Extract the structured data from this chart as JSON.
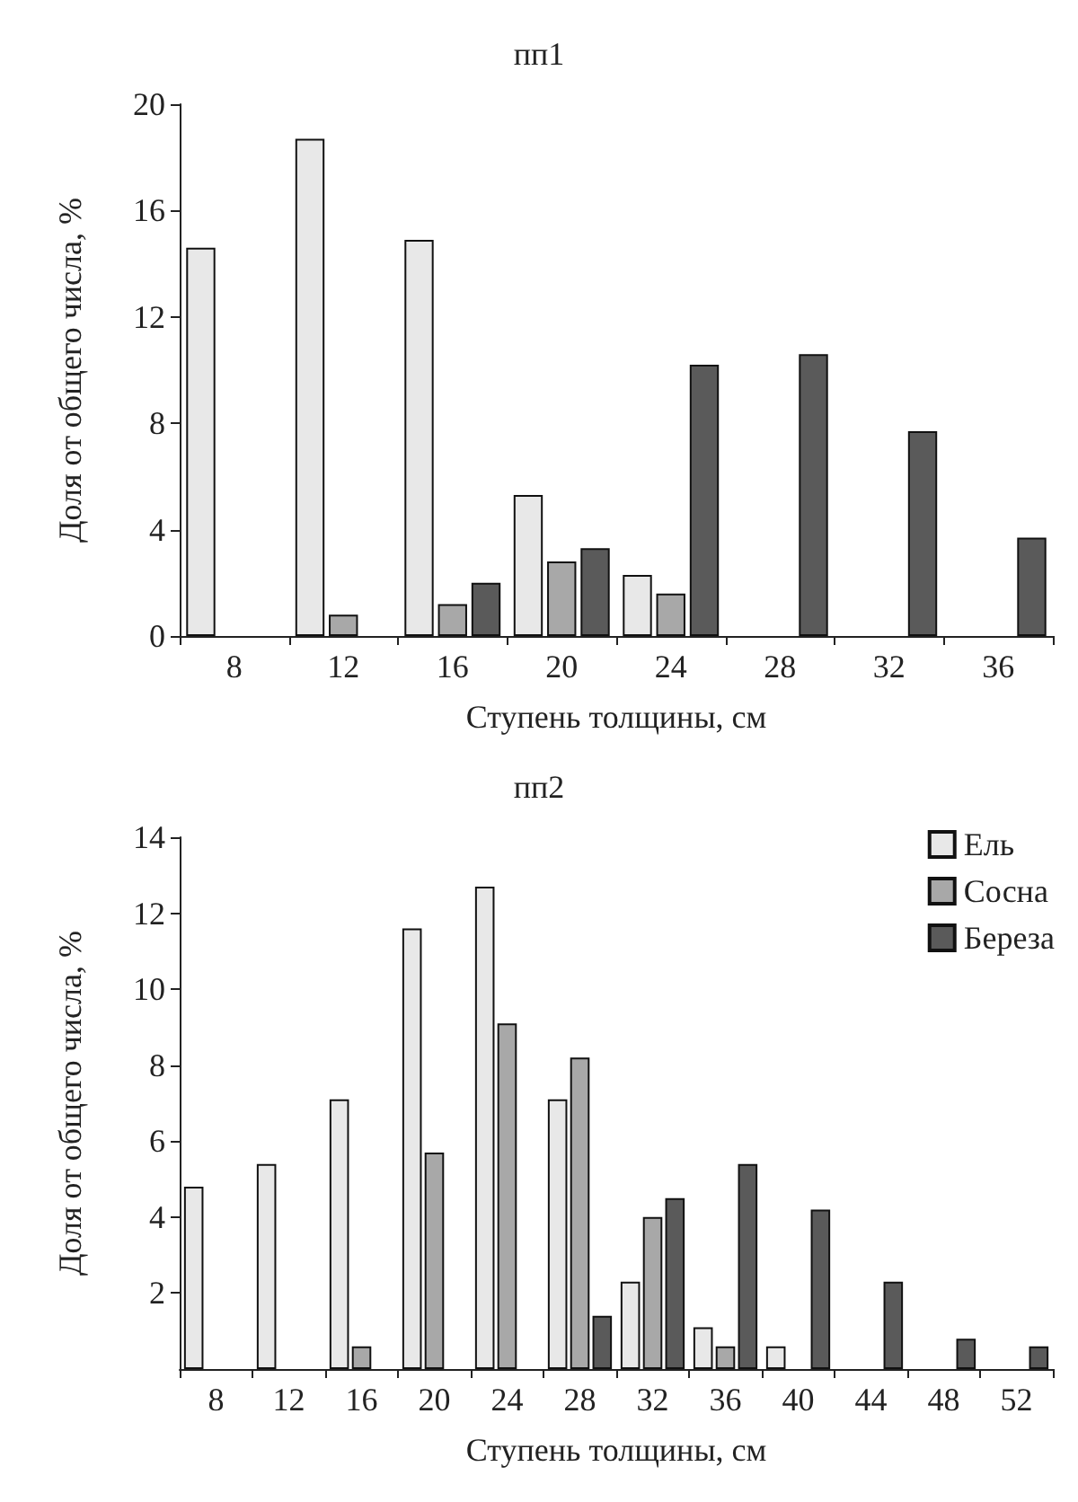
{
  "chart_data": [
    {
      "type": "bar",
      "title": "пп1",
      "xlabel": "Ступень толщины, см",
      "ylabel": "Доля от общего числа, %",
      "categories": [
        "8",
        "12",
        "16",
        "20",
        "24",
        "28",
        "32",
        "36"
      ],
      "ylim": [
        0,
        20
      ],
      "yticks": [
        0,
        4,
        8,
        12,
        16,
        20
      ],
      "grid": false,
      "legend": false,
      "series": [
        {
          "color": "#e8e8e8",
          "values": [
            14.6,
            18.7,
            14.9,
            5.3,
            2.3,
            null,
            null,
            null
          ]
        },
        {
          "color": "#a8a8a8",
          "values": [
            null,
            0.8,
            1.2,
            2.8,
            1.6,
            null,
            null,
            null
          ]
        },
        {
          "color": "#5a5a5a",
          "values": [
            null,
            null,
            2.0,
            3.3,
            10.2,
            10.6,
            7.7,
            3.7
          ]
        }
      ]
    },
    {
      "type": "bar",
      "title": "пп2",
      "xlabel": "Ступень толщины, см",
      "ylabel": "Доля от общего числа, %",
      "categories": [
        "8",
        "12",
        "16",
        "20",
        "24",
        "28",
        "32",
        "36",
        "40",
        "44",
        "48",
        "52"
      ],
      "ylim": [
        0,
        14
      ],
      "yticks": [
        2,
        4,
        6,
        8,
        10,
        12,
        14
      ],
      "grid": false,
      "legend": "top right",
      "series": [
        {
          "name": "Ель",
          "color": "#e8e8e8",
          "values": [
            4.8,
            5.4,
            7.1,
            11.6,
            12.7,
            7.1,
            2.3,
            1.1,
            0.6,
            null,
            null,
            null
          ]
        },
        {
          "name": "Сосна",
          "color": "#a8a8a8",
          "values": [
            null,
            null,
            0.6,
            5.7,
            9.1,
            8.2,
            4.0,
            0.6,
            null,
            null,
            null,
            null
          ]
        },
        {
          "name": "Береза",
          "color": "#5a5a5a",
          "values": [
            null,
            null,
            null,
            null,
            null,
            1.4,
            4.5,
            5.4,
            4.2,
            2.3,
            0.8,
            0.6
          ]
        }
      ]
    }
  ]
}
